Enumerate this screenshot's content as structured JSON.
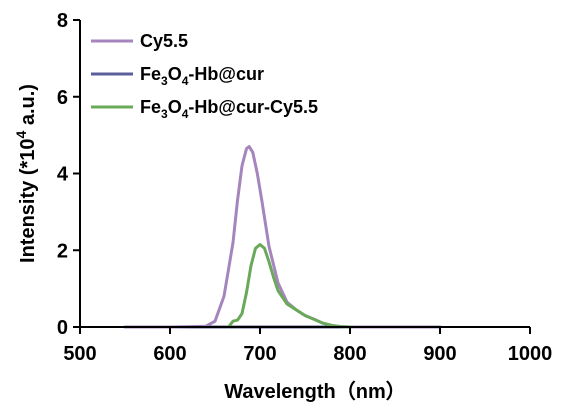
{
  "chart_data": {
    "type": "line",
    "xlabel": "Wavelength（nm）",
    "ylabel_parts": [
      "Intensity (*10",
      "4",
      " a.u.)"
    ],
    "xlim": [
      500,
      1000
    ],
    "ylim": [
      0,
      8
    ],
    "xticks": [
      500,
      600,
      700,
      800,
      900,
      1000
    ],
    "yticks": [
      0,
      2,
      4,
      6,
      8
    ],
    "grid": false,
    "legend_position": "top-left",
    "series": [
      {
        "name": "Cy5.5",
        "name_parts": [
          {
            "t": "Cy5.5",
            "sub": false
          }
        ],
        "color": "#a585bd",
        "x": [
          550,
          600,
          640,
          650,
          660,
          670,
          675,
          680,
          685,
          688,
          692,
          697,
          702,
          710,
          720,
          730,
          740,
          750,
          760,
          770,
          780,
          790,
          800,
          850,
          900
        ],
        "y": [
          0,
          0,
          0.02,
          0.15,
          0.8,
          2.2,
          3.3,
          4.2,
          4.65,
          4.7,
          4.55,
          4.0,
          3.3,
          2.1,
          1.15,
          0.65,
          0.45,
          0.3,
          0.2,
          0.1,
          0.04,
          0.01,
          0,
          0,
          0
        ]
      },
      {
        "name": "Fe3O4-Hb@cur",
        "name_parts": [
          {
            "t": "Fe",
            "sub": false
          },
          {
            "t": "3",
            "sub": true
          },
          {
            "t": "O",
            "sub": false
          },
          {
            "t": "4",
            "sub": true
          },
          {
            "t": "-Hb@cur",
            "sub": false
          }
        ],
        "color": "#5b5f98",
        "x": [
          550,
          600,
          650,
          700,
          750,
          800,
          850,
          900
        ],
        "y": [
          0,
          0,
          0,
          0,
          0,
          0,
          0,
          0
        ]
      },
      {
        "name": "Fe3O4-Hb@cur-Cy5.5",
        "name_parts": [
          {
            "t": "Fe",
            "sub": false
          },
          {
            "t": "3",
            "sub": true
          },
          {
            "t": "O",
            "sub": false
          },
          {
            "t": "4",
            "sub": true
          },
          {
            "t": "-Hb@cur-Cy5.5",
            "sub": false
          }
        ],
        "color": "#6aa85a",
        "x": [
          665,
          670,
          675,
          680,
          685,
          690,
          695,
          700,
          705,
          710,
          715,
          720,
          730,
          740,
          750,
          760,
          770,
          780,
          790,
          800
        ],
        "y": [
          0,
          0.15,
          0.18,
          0.35,
          0.9,
          1.6,
          2.05,
          2.15,
          2.05,
          1.7,
          1.3,
          0.95,
          0.6,
          0.45,
          0.3,
          0.2,
          0.1,
          0.04,
          0.01,
          0
        ]
      }
    ]
  }
}
